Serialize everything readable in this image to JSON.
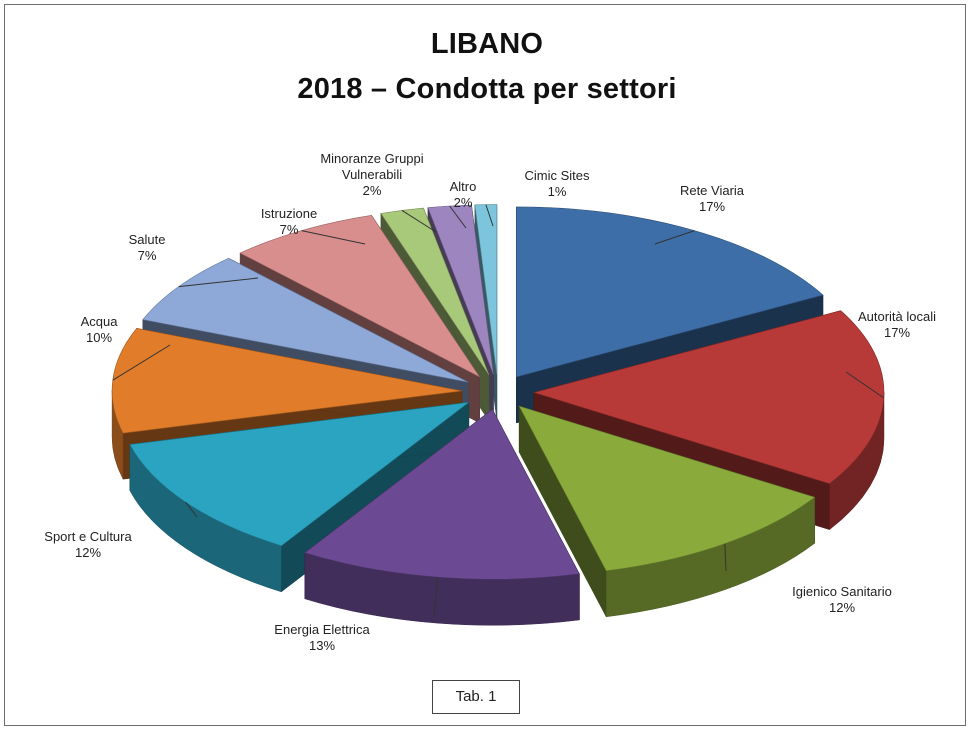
{
  "chart_data": {
    "type": "pie",
    "title": "LIBANO",
    "subtitle": "2018 – Condotta per settori",
    "slices": [
      {
        "label": "Rete Viaria",
        "value": 17,
        "label_text": "17%",
        "color": "#3d6ea8"
      },
      {
        "label": "Autorità locali",
        "value": 17,
        "label_text": "17%",
        "color": "#b73a38"
      },
      {
        "label": "Igienico Sanitario",
        "value": 12,
        "label_text": "12%",
        "color": "#8aab3c"
      },
      {
        "label": "Energia Elettrica",
        "value": 13,
        "label_text": "13%",
        "color": "#6b4a93"
      },
      {
        "label": "Sport e Cultura",
        "value": 12,
        "label_text": "12%",
        "color": "#2ba4c2"
      },
      {
        "label": "Acqua",
        "value": 10,
        "label_text": "10%",
        "color": "#e07c2a"
      },
      {
        "label": "Salute",
        "value": 7,
        "label_text": "7%",
        "color": "#8ea9d8"
      },
      {
        "label": "Istruzione",
        "value": 7,
        "label_text": "7%",
        "color": "#d98e8e"
      },
      {
        "label": "Minoranze Gruppi Vulnerabili",
        "label_lines": [
          "Minoranze Gruppi",
          "Vulnerabili"
        ],
        "value": 2,
        "label_text": "2%",
        "color": "#a8c97a"
      },
      {
        "label": "Altro",
        "value": 2,
        "label_text": "2%",
        "color": "#9d85bf"
      },
      {
        "label": "Cimic Sites",
        "value": 1,
        "label_text": "1%",
        "color": "#7cc5dc"
      }
    ]
  },
  "footer": {
    "tab_label": "Tab. 1"
  }
}
